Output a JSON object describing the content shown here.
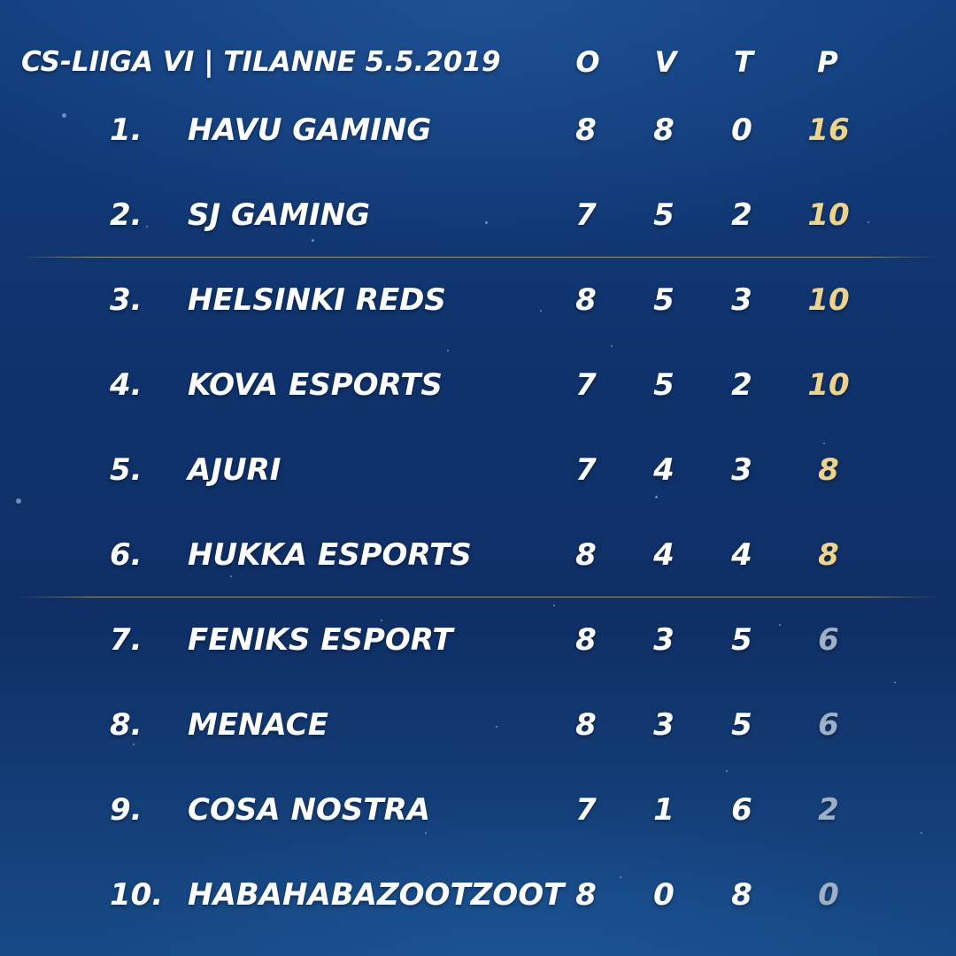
{
  "header": {
    "title": "CS-LIIGA VI | TILANNE 5.5.2019",
    "col_o": "O",
    "col_v": "V",
    "col_t": "T",
    "col_p": "P"
  },
  "colors": {
    "gold_points": "#f0d38a",
    "grey_points": "#9fb0c6",
    "text": "#ffffff"
  },
  "standings": [
    {
      "rank": "1.",
      "team": "HAVU GAMING",
      "o": "8",
      "v": "8",
      "t": "0",
      "p": "16",
      "tier": "gold"
    },
    {
      "rank": "2.",
      "team": "SJ GAMING",
      "o": "7",
      "v": "5",
      "t": "2",
      "p": "10",
      "tier": "gold"
    },
    {
      "rank": "3.",
      "team": "HELSINKI REDS",
      "o": "8",
      "v": "5",
      "t": "3",
      "p": "10",
      "tier": "gold"
    },
    {
      "rank": "4.",
      "team": "KOVA ESPORTS",
      "o": "7",
      "v": "5",
      "t": "2",
      "p": "10",
      "tier": "gold"
    },
    {
      "rank": "5.",
      "team": "AJURI",
      "o": "7",
      "v": "4",
      "t": "3",
      "p": "8",
      "tier": "gold"
    },
    {
      "rank": "6.",
      "team": "HUKKA ESPORTS",
      "o": "8",
      "v": "4",
      "t": "4",
      "p": "8",
      "tier": "gold"
    },
    {
      "rank": "7.",
      "team": "FENIKS ESPORT",
      "o": "8",
      "v": "3",
      "t": "5",
      "p": "6",
      "tier": "grey"
    },
    {
      "rank": "8.",
      "team": "MENACE",
      "o": "8",
      "v": "3",
      "t": "5",
      "p": "6",
      "tier": "grey"
    },
    {
      "rank": "9.",
      "team": "COSA NOSTRA",
      "o": "7",
      "v": "1",
      "t": "6",
      "p": "2",
      "tier": "grey"
    },
    {
      "rank": "10.",
      "team": "HABAHABAZOOTZOOT",
      "o": "8",
      "v": "0",
      "t": "8",
      "p": "0",
      "tier": "grey"
    }
  ]
}
